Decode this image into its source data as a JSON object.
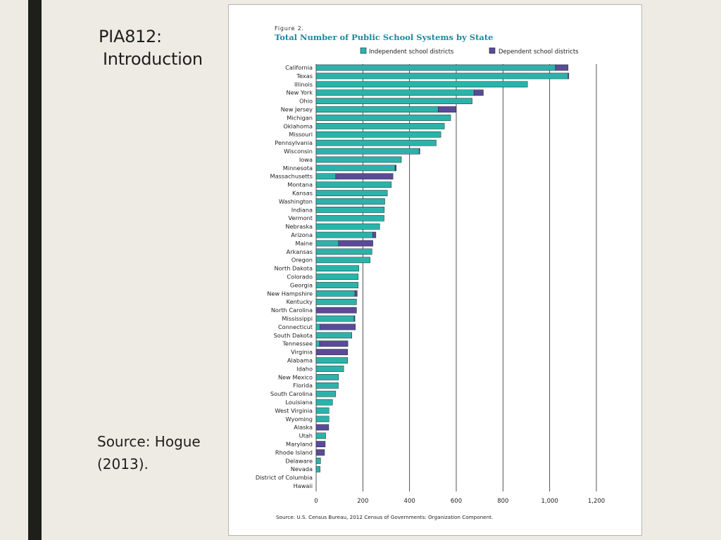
{
  "slide": {
    "title_line1": "PIA812:",
    "title_line2": "Introduction",
    "source_line1": "Source: Hogue",
    "source_line2": "(2013)."
  },
  "colors": {
    "independent": "#2bb3ab",
    "dependent": "#5b4a9a",
    "outline": "#1d2a2a",
    "grid": "#2a2a2a"
  },
  "chart_data": {
    "type": "bar",
    "orientation": "horizontal",
    "stacked": true,
    "figure_label": "Figure 2.",
    "title": "Total Number of Public School Systems by State",
    "source": "Source: U.S. Census Bureau, 2012 Census of Governments: Organization Component.",
    "legend": [
      "Independent school districts",
      "Dependent school districts"
    ],
    "xlim": [
      0,
      1200
    ],
    "ticks": [
      0,
      200,
      400,
      600,
      800,
      1000,
      1200
    ],
    "tick_labels": [
      "0",
      "200",
      "400",
      "600",
      "800",
      "1,000",
      "1,200"
    ],
    "categories": [
      "California",
      "Texas",
      "Illinois",
      "New York",
      "Ohio",
      "New Jersey",
      "Michigan",
      "Oklahoma",
      "Missouri",
      "Pennsylvania",
      "Wisconsin",
      "Iowa",
      "Minnesota",
      "Massachusetts",
      "Montana",
      "Kansas",
      "Washington",
      "Indiana",
      "Vermont",
      "Nebraska",
      "Arizona",
      "Maine",
      "Arkansas",
      "Oregon",
      "North Dakota",
      "Colorado",
      "Georgia",
      "New Hampshire",
      "Kentucky",
      "North Carolina",
      "Mississippi",
      "Connecticut",
      "South Dakota",
      "Tennessee",
      "Virginia",
      "Alabama",
      "Idaho",
      "New Mexico",
      "Florida",
      "South Carolina",
      "Louisiana",
      "West Virginia",
      "Wyoming",
      "Alaska",
      "Utah",
      "Maryland",
      "Rhode Island",
      "Delaware",
      "Nevada",
      "District of Columbia",
      "Hawaii"
    ],
    "series": [
      {
        "name": "Independent school districts",
        "values": [
          1025,
          1079,
          905,
          676,
          668,
          523,
          576,
          549,
          534,
          514,
          441,
          365,
          338,
          84,
          322,
          305,
          294,
          292,
          291,
          272,
          242,
          96,
          239,
          231,
          183,
          180,
          180,
          166,
          173,
          0,
          163,
          17,
          153,
          15,
          0,
          135,
          118,
          96,
          95,
          84,
          70,
          55,
          55,
          0,
          41,
          0,
          0,
          19,
          17,
          0,
          0
        ]
      },
      {
        "name": "Dependent school districts",
        "values": [
          54,
          3,
          0,
          40,
          0,
          76,
          0,
          0,
          0,
          0,
          3,
          0,
          5,
          245,
          0,
          0,
          0,
          0,
          0,
          0,
          14,
          147,
          0,
          0,
          0,
          0,
          0,
          10,
          0,
          173,
          3,
          151,
          0,
          121,
          135,
          0,
          0,
          0,
          0,
          0,
          0,
          0,
          0,
          54,
          0,
          39,
          36,
          0,
          0,
          0,
          0
        ]
      }
    ]
  }
}
